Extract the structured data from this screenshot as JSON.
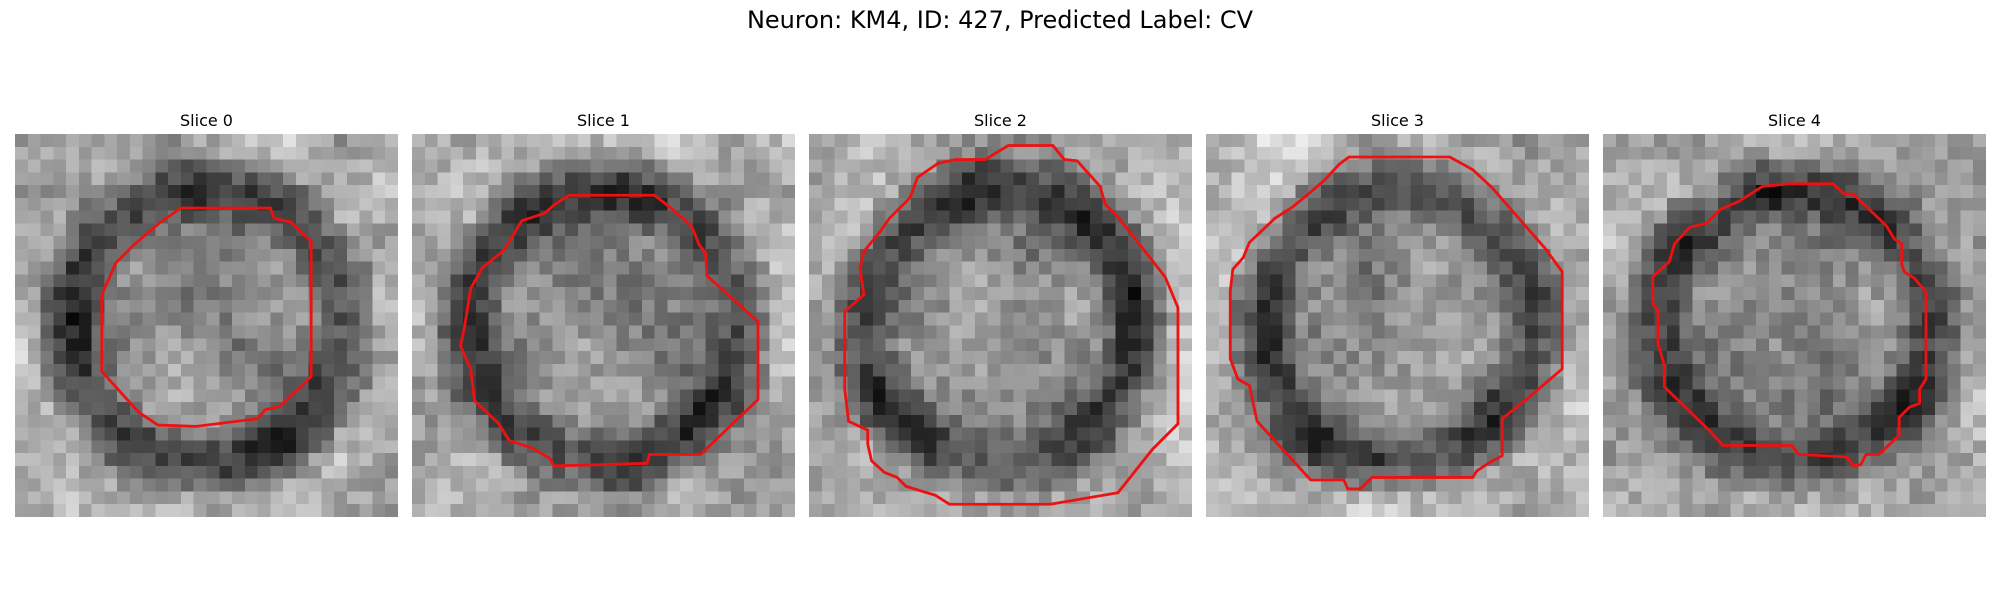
{
  "figure": {
    "title": "Neuron: KM4, ID: 427, Predicted Label: CV"
  },
  "colors": {
    "contour": "#ee1111",
    "background": "#ffffff"
  },
  "panels": [
    {
      "title": "Slice 0",
      "seed": 11,
      "dark_ring": 1
    },
    {
      "title": "Slice 1",
      "seed": 23,
      "dark_ring": 1
    },
    {
      "title": "Slice 2",
      "seed": 37,
      "dark_ring": 1
    },
    {
      "title": "Slice 3",
      "seed": 41,
      "dark_ring": 1
    },
    {
      "title": "Slice 4",
      "seed": 53,
      "dark_ring": 1
    }
  ]
}
